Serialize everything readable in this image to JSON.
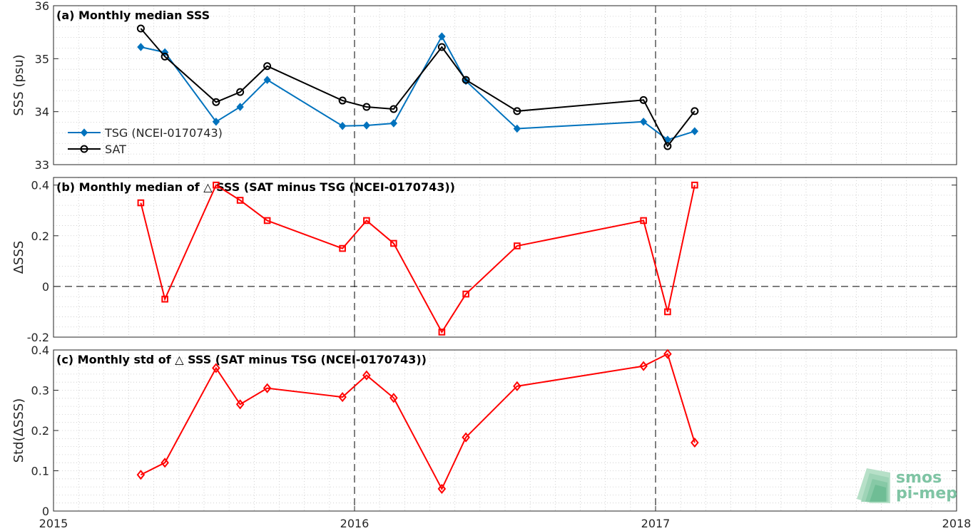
{
  "chart_data": [
    {
      "type": "line",
      "title": "(a) Monthly median SSS",
      "ylabel": "SSS (psu)",
      "xlim": [
        2015,
        2018
      ],
      "ylim": [
        33,
        36
      ],
      "yticks": [
        33,
        34,
        35,
        36
      ],
      "ytick_labels": [
        "33",
        "34",
        "35",
        "36"
      ],
      "grid": "minor dotted",
      "legend": "bottom-left",
      "series": [
        {
          "name": "TSG (NCEI-0170743)",
          "color": "#0072bd",
          "marker": "diamond-filled",
          "x": [
            2015.29,
            2015.37,
            2015.54,
            2015.62,
            2015.71,
            2015.96,
            2016.04,
            2016.13,
            2016.29,
            2016.37,
            2016.54,
            2016.96,
            2017.04,
            2017.13
          ],
          "values": [
            35.22,
            35.12,
            33.81,
            34.09,
            34.6,
            33.73,
            33.74,
            33.78,
            35.42,
            34.58,
            33.68,
            33.81,
            33.47,
            33.63
          ]
        },
        {
          "name": "SAT",
          "color": "#000000",
          "marker": "circle-open",
          "x": [
            2015.29,
            2015.37,
            2015.54,
            2015.62,
            2015.71,
            2015.96,
            2016.04,
            2016.13,
            2016.29,
            2016.37,
            2016.54,
            2016.96,
            2017.04,
            2017.13
          ],
          "values": [
            35.57,
            35.04,
            34.18,
            34.37,
            34.86,
            34.21,
            34.09,
            34.05,
            35.22,
            34.6,
            34.01,
            34.22,
            33.35,
            34.01
          ]
        }
      ]
    },
    {
      "type": "line",
      "title": "(b) Monthly median of △ SSS (SAT minus TSG (NCEI-0170743))",
      "ylabel": "ΔSSS",
      "xlim": [
        2015,
        2018
      ],
      "ylim": [
        -0.2,
        0.43
      ],
      "yticks": [
        -0.2,
        0,
        0.2,
        0.4
      ],
      "ytick_labels": [
        "-0.2",
        "0",
        "0.2",
        "0.4"
      ],
      "zero_line": true,
      "grid": "minor dotted",
      "series": [
        {
          "color": "#ff0000",
          "marker": "square-open",
          "x": [
            2015.29,
            2015.37,
            2015.54,
            2015.62,
            2015.71,
            2015.96,
            2016.04,
            2016.13,
            2016.29,
            2016.37,
            2016.54,
            2016.96,
            2017.04,
            2017.13
          ],
          "values": [
            0.33,
            -0.05,
            0.4,
            0.34,
            0.26,
            0.15,
            0.26,
            0.17,
            -0.18,
            -0.03,
            0.16,
            0.26,
            -0.1,
            0.4
          ]
        }
      ]
    },
    {
      "type": "line",
      "title": "(c) Monthly std of △ SSS (SAT minus TSG (NCEI-0170743))",
      "ylabel": "Std(ΔSSS)",
      "xlim": [
        2015,
        2018
      ],
      "ylim": [
        0,
        0.4
      ],
      "yticks": [
        0,
        0.1,
        0.2,
        0.3,
        0.4
      ],
      "ytick_labels": [
        "0",
        "0.1",
        "0.2",
        "0.3",
        "0.4"
      ],
      "xticks": [
        2015,
        2016,
        2017,
        2018
      ],
      "xtick_labels": [
        "2015",
        "2016",
        "2017",
        "2018"
      ],
      "grid": "minor dotted",
      "series": [
        {
          "color": "#ff0000",
          "marker": "diamond-open",
          "x": [
            2015.29,
            2015.37,
            2015.54,
            2015.62,
            2015.71,
            2015.96,
            2016.04,
            2016.13,
            2016.29,
            2016.37,
            2016.54,
            2016.96,
            2017.04,
            2017.13
          ],
          "values": [
            0.09,
            0.12,
            0.355,
            0.265,
            0.305,
            0.283,
            0.337,
            0.281,
            0.055,
            0.183,
            0.31,
            0.36,
            0.39,
            0.17
          ]
        }
      ]
    }
  ],
  "year_lines": [
    2016,
    2017
  ],
  "logo": {
    "line1": "smos",
    "line2": "pi-mep",
    "color": "#7fc4a4"
  }
}
